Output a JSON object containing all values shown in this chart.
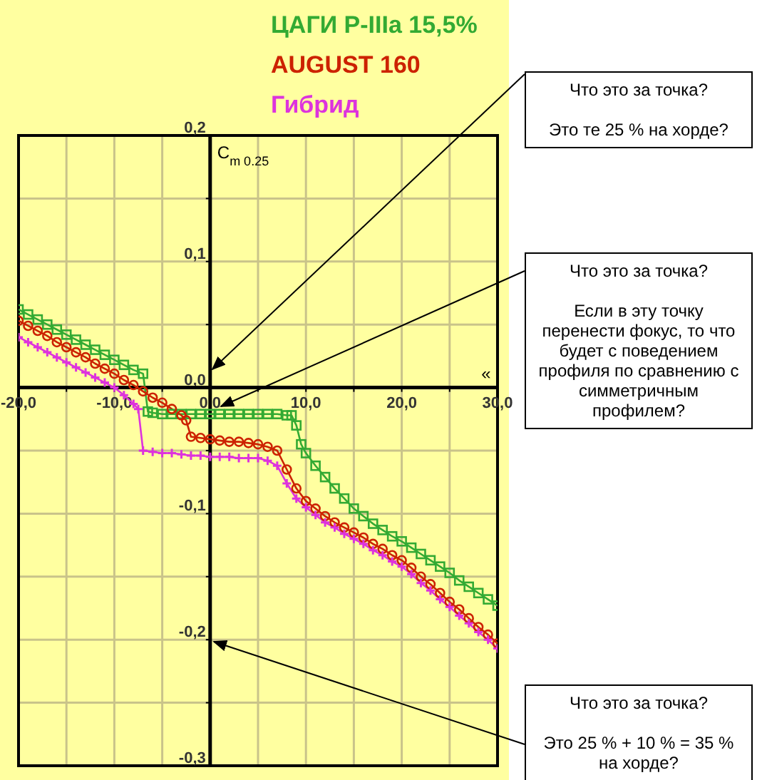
{
  "chart_data": {
    "type": "line",
    "ylabel": "C$_{m 0.25}$",
    "xlabel": "«",
    "xlim": [
      -20,
      30
    ],
    "ylim": [
      -0.3,
      0.2
    ],
    "xticks": [
      {
        "value": -20,
        "label": "-20,0"
      },
      {
        "value": -15,
        "label": null
      },
      {
        "value": -10,
        "label": "-10,0"
      },
      {
        "value": -5,
        "label": null
      },
      {
        "value": 0,
        "label": "0,0"
      },
      {
        "value": 5,
        "label": null
      },
      {
        "value": 10,
        "label": "10,0"
      },
      {
        "value": 15,
        "label": null
      },
      {
        "value": 20,
        "label": "20,0"
      },
      {
        "value": 25,
        "label": null
      },
      {
        "value": 30,
        "label": "30,0"
      }
    ],
    "yticks": [
      {
        "value": -0.3,
        "label": "-0,3"
      },
      {
        "value": -0.25,
        "label": null
      },
      {
        "value": -0.2,
        "label": "-0,2"
      },
      {
        "value": -0.15,
        "label": null
      },
      {
        "value": -0.1,
        "label": "-0,1"
      },
      {
        "value": -0.05,
        "label": null
      },
      {
        "value": 0,
        "label": "0,0"
      },
      {
        "value": 0.05,
        "label": null
      },
      {
        "value": 0.1,
        "label": "0,1"
      },
      {
        "value": 0.15,
        "label": null
      },
      {
        "value": 0.2,
        "label": "0,2"
      }
    ],
    "grid": true,
    "legend": "top",
    "line_style": "solid",
    "series": [
      {
        "name": "ЦАГИ P-IIIa 15,5%",
        "color": "#33aa33",
        "marker": "square",
        "x": [
          -20,
          -19,
          -18,
          -17,
          -16,
          -15,
          -14,
          -13,
          -12,
          -11,
          -10,
          -9,
          -8,
          -7,
          -6.5,
          -6,
          -5,
          -4,
          -3,
          -2,
          -1,
          0,
          1,
          2,
          3,
          4,
          5,
          6,
          7,
          8,
          8.5,
          9,
          9.5,
          10,
          11,
          12,
          13,
          14,
          15,
          16,
          17,
          18,
          19,
          20,
          21,
          22,
          23,
          24,
          25,
          26,
          27,
          28,
          29,
          30
        ],
        "values": [
          0.062,
          0.058,
          0.054,
          0.05,
          0.046,
          0.042,
          0.038,
          0.034,
          0.03,
          0.026,
          0.022,
          0.018,
          0.014,
          0.011,
          -0.019,
          -0.02,
          -0.021,
          -0.021,
          -0.021,
          -0.021,
          -0.021,
          -0.021,
          -0.021,
          -0.021,
          -0.021,
          -0.021,
          -0.021,
          -0.021,
          -0.021,
          -0.022,
          -0.022,
          -0.03,
          -0.045,
          -0.052,
          -0.062,
          -0.071,
          -0.08,
          -0.088,
          -0.096,
          -0.102,
          -0.108,
          -0.113,
          -0.118,
          -0.122,
          -0.127,
          -0.132,
          -0.137,
          -0.142,
          -0.147,
          -0.153,
          -0.158,
          -0.163,
          -0.168,
          -0.173
        ]
      },
      {
        "name": "AUGUST 160",
        "color": "#cc2200",
        "marker": "circle",
        "x": [
          -20,
          -19,
          -18,
          -17,
          -16,
          -15,
          -14,
          -13,
          -12,
          -11,
          -10,
          -9,
          -8,
          -7,
          -6,
          -5,
          -4,
          -3,
          -2.5,
          -2,
          -1,
          0,
          1,
          2,
          3,
          4,
          5,
          6,
          7,
          8,
          9,
          10,
          11,
          12,
          13,
          14,
          15,
          16,
          17,
          18,
          19,
          20,
          21,
          22,
          23,
          24,
          25,
          26,
          27,
          28,
          29,
          30
        ],
        "values": [
          0.053,
          0.049,
          0.045,
          0.041,
          0.036,
          0.032,
          0.028,
          0.024,
          0.019,
          0.015,
          0.011,
          0.006,
          0.002,
          -0.003,
          -0.008,
          -0.012,
          -0.017,
          -0.022,
          -0.026,
          -0.039,
          -0.04,
          -0.041,
          -0.042,
          -0.043,
          -0.043,
          -0.044,
          -0.045,
          -0.047,
          -0.05,
          -0.065,
          -0.08,
          -0.09,
          -0.096,
          -0.102,
          -0.107,
          -0.111,
          -0.115,
          -0.119,
          -0.124,
          -0.128,
          -0.133,
          -0.137,
          -0.143,
          -0.15,
          -0.156,
          -0.163,
          -0.17,
          -0.176,
          -0.183,
          -0.19,
          -0.196,
          -0.203
        ]
      },
      {
        "name": "Гибрид",
        "color": "#dd33dd",
        "marker": "cross",
        "x": [
          -20,
          -19,
          -18,
          -17,
          -16,
          -15,
          -14,
          -13,
          -12,
          -11,
          -10,
          -9,
          -8,
          -7.5,
          -7,
          -6,
          -5,
          -4,
          -3,
          -2,
          -1,
          0,
          1,
          2,
          3,
          4,
          5,
          6,
          7,
          8,
          9,
          10,
          11,
          12,
          13,
          14,
          15,
          16,
          17,
          18,
          19,
          20,
          21,
          22,
          23,
          24,
          25,
          26,
          27,
          28,
          29,
          30
        ],
        "values": [
          0.04,
          0.036,
          0.032,
          0.028,
          0.024,
          0.02,
          0.016,
          0.012,
          0.008,
          0.004,
          0,
          -0.006,
          -0.013,
          -0.017,
          -0.05,
          -0.051,
          -0.052,
          -0.052,
          -0.053,
          -0.054,
          -0.054,
          -0.055,
          -0.055,
          -0.055,
          -0.056,
          -0.056,
          -0.056,
          -0.058,
          -0.062,
          -0.076,
          -0.088,
          -0.095,
          -0.101,
          -0.107,
          -0.111,
          -0.116,
          -0.12,
          -0.124,
          -0.129,
          -0.133,
          -0.138,
          -0.142,
          -0.148,
          -0.155,
          -0.161,
          -0.168,
          -0.174,
          -0.181,
          -0.187,
          -0.194,
          -0.2,
          -0.207
        ]
      }
    ],
    "annotations": [
      "Что это за точка?\n\nЭто те 25 % на хорде?",
      "Что это за точка?\n\nЕсли в эту точку перенести фокус, то что будет с поведением профиля по сравнению с симметричным профилем?",
      "Что это за точка?\n\nЭто 25 % + 10 % = 35 % на хорде?"
    ]
  }
}
